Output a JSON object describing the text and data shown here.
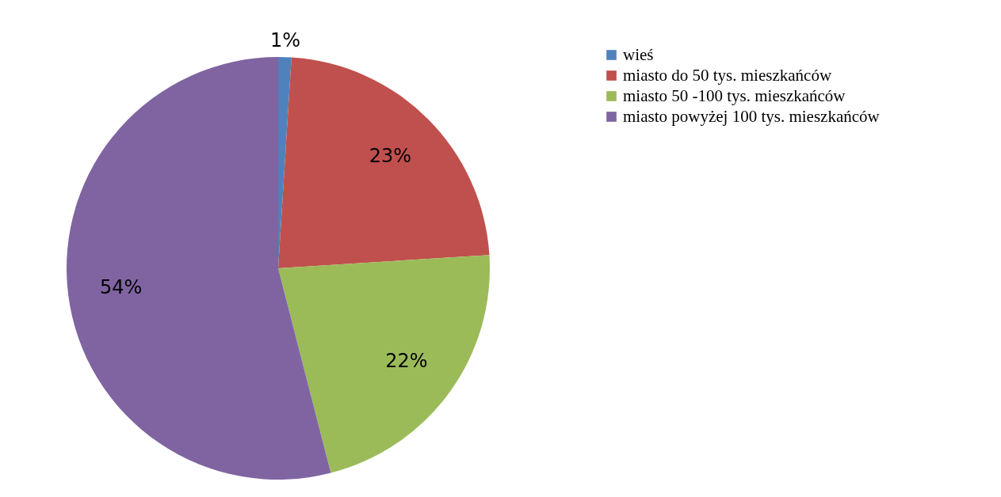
{
  "chart_data": {
    "type": "pie",
    "categories": [
      "wieś",
      "miasto do 50 tys. mieszkańców",
      "miasto 50 -100 tys. mieszkańców",
      "miasto powyżej 100 tys. mieszkańców"
    ],
    "values": [
      1,
      23,
      22,
      54
    ],
    "value_labels": [
      "1%",
      "23%",
      "22%",
      "54%"
    ],
    "colors": [
      "#4f81bd",
      "#c0504d",
      "#9bbb59",
      "#8064a2"
    ],
    "legend": "right"
  }
}
